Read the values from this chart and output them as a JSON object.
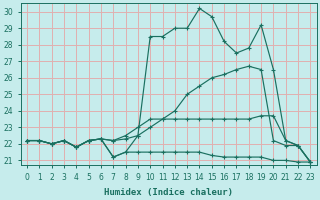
{
  "xlabel": "Humidex (Indice chaleur)",
  "bg_color": "#c6ecec",
  "line_color": "#1a7060",
  "grid_color": "#e0b0b0",
  "xlim": [
    -0.5,
    23.5
  ],
  "ylim": [
    20.7,
    30.5
  ],
  "xticks": [
    0,
    1,
    2,
    3,
    4,
    5,
    6,
    7,
    8,
    9,
    10,
    11,
    12,
    13,
    14,
    15,
    16,
    17,
    18,
    19,
    20,
    21,
    22,
    23
  ],
  "yticks": [
    21,
    22,
    23,
    24,
    25,
    26,
    27,
    28,
    29,
    30
  ],
  "line1_x": [
    0,
    1,
    2,
    3,
    4,
    5,
    6,
    7,
    8,
    9,
    10,
    11,
    12,
    13,
    14,
    15,
    16,
    17,
    18,
    19,
    20,
    21,
    22,
    23
  ],
  "line1_y": [
    22.2,
    22.2,
    22.0,
    22.2,
    21.8,
    22.2,
    22.3,
    21.2,
    21.5,
    22.5,
    28.5,
    28.5,
    29.0,
    29.0,
    30.2,
    29.7,
    28.2,
    27.5,
    27.8,
    29.2,
    26.5,
    22.2,
    21.9,
    20.9
  ],
  "line2_x": [
    0,
    1,
    2,
    3,
    4,
    5,
    6,
    7,
    8,
    9,
    10,
    11,
    12,
    13,
    14,
    15,
    16,
    17,
    18,
    19,
    20,
    21,
    22,
    23
  ],
  "line2_y": [
    22.2,
    22.2,
    22.0,
    22.2,
    21.8,
    22.2,
    22.3,
    22.2,
    22.3,
    22.5,
    23.0,
    23.5,
    24.0,
    25.0,
    25.5,
    26.0,
    26.2,
    26.5,
    26.7,
    26.5,
    22.2,
    21.9,
    21.9,
    20.9
  ],
  "line3_x": [
    0,
    1,
    2,
    3,
    4,
    5,
    6,
    7,
    8,
    9,
    10,
    11,
    12,
    13,
    14,
    15,
    16,
    17,
    18,
    19,
    20,
    21,
    22,
    23
  ],
  "line3_y": [
    22.2,
    22.2,
    22.0,
    22.2,
    21.8,
    22.2,
    22.3,
    22.2,
    22.5,
    23.0,
    23.5,
    23.5,
    23.5,
    23.5,
    23.5,
    23.5,
    23.5,
    23.5,
    23.5,
    23.7,
    23.7,
    22.2,
    21.9,
    20.9
  ],
  "line4_x": [
    0,
    1,
    2,
    3,
    4,
    5,
    6,
    7,
    8,
    9,
    10,
    11,
    12,
    13,
    14,
    15,
    16,
    17,
    18,
    19,
    20,
    21,
    22,
    23
  ],
  "line4_y": [
    22.2,
    22.2,
    22.0,
    22.2,
    21.8,
    22.2,
    22.3,
    21.2,
    21.5,
    21.5,
    21.5,
    21.5,
    21.5,
    21.5,
    21.5,
    21.3,
    21.2,
    21.2,
    21.2,
    21.2,
    21.0,
    21.0,
    20.9,
    20.9
  ]
}
